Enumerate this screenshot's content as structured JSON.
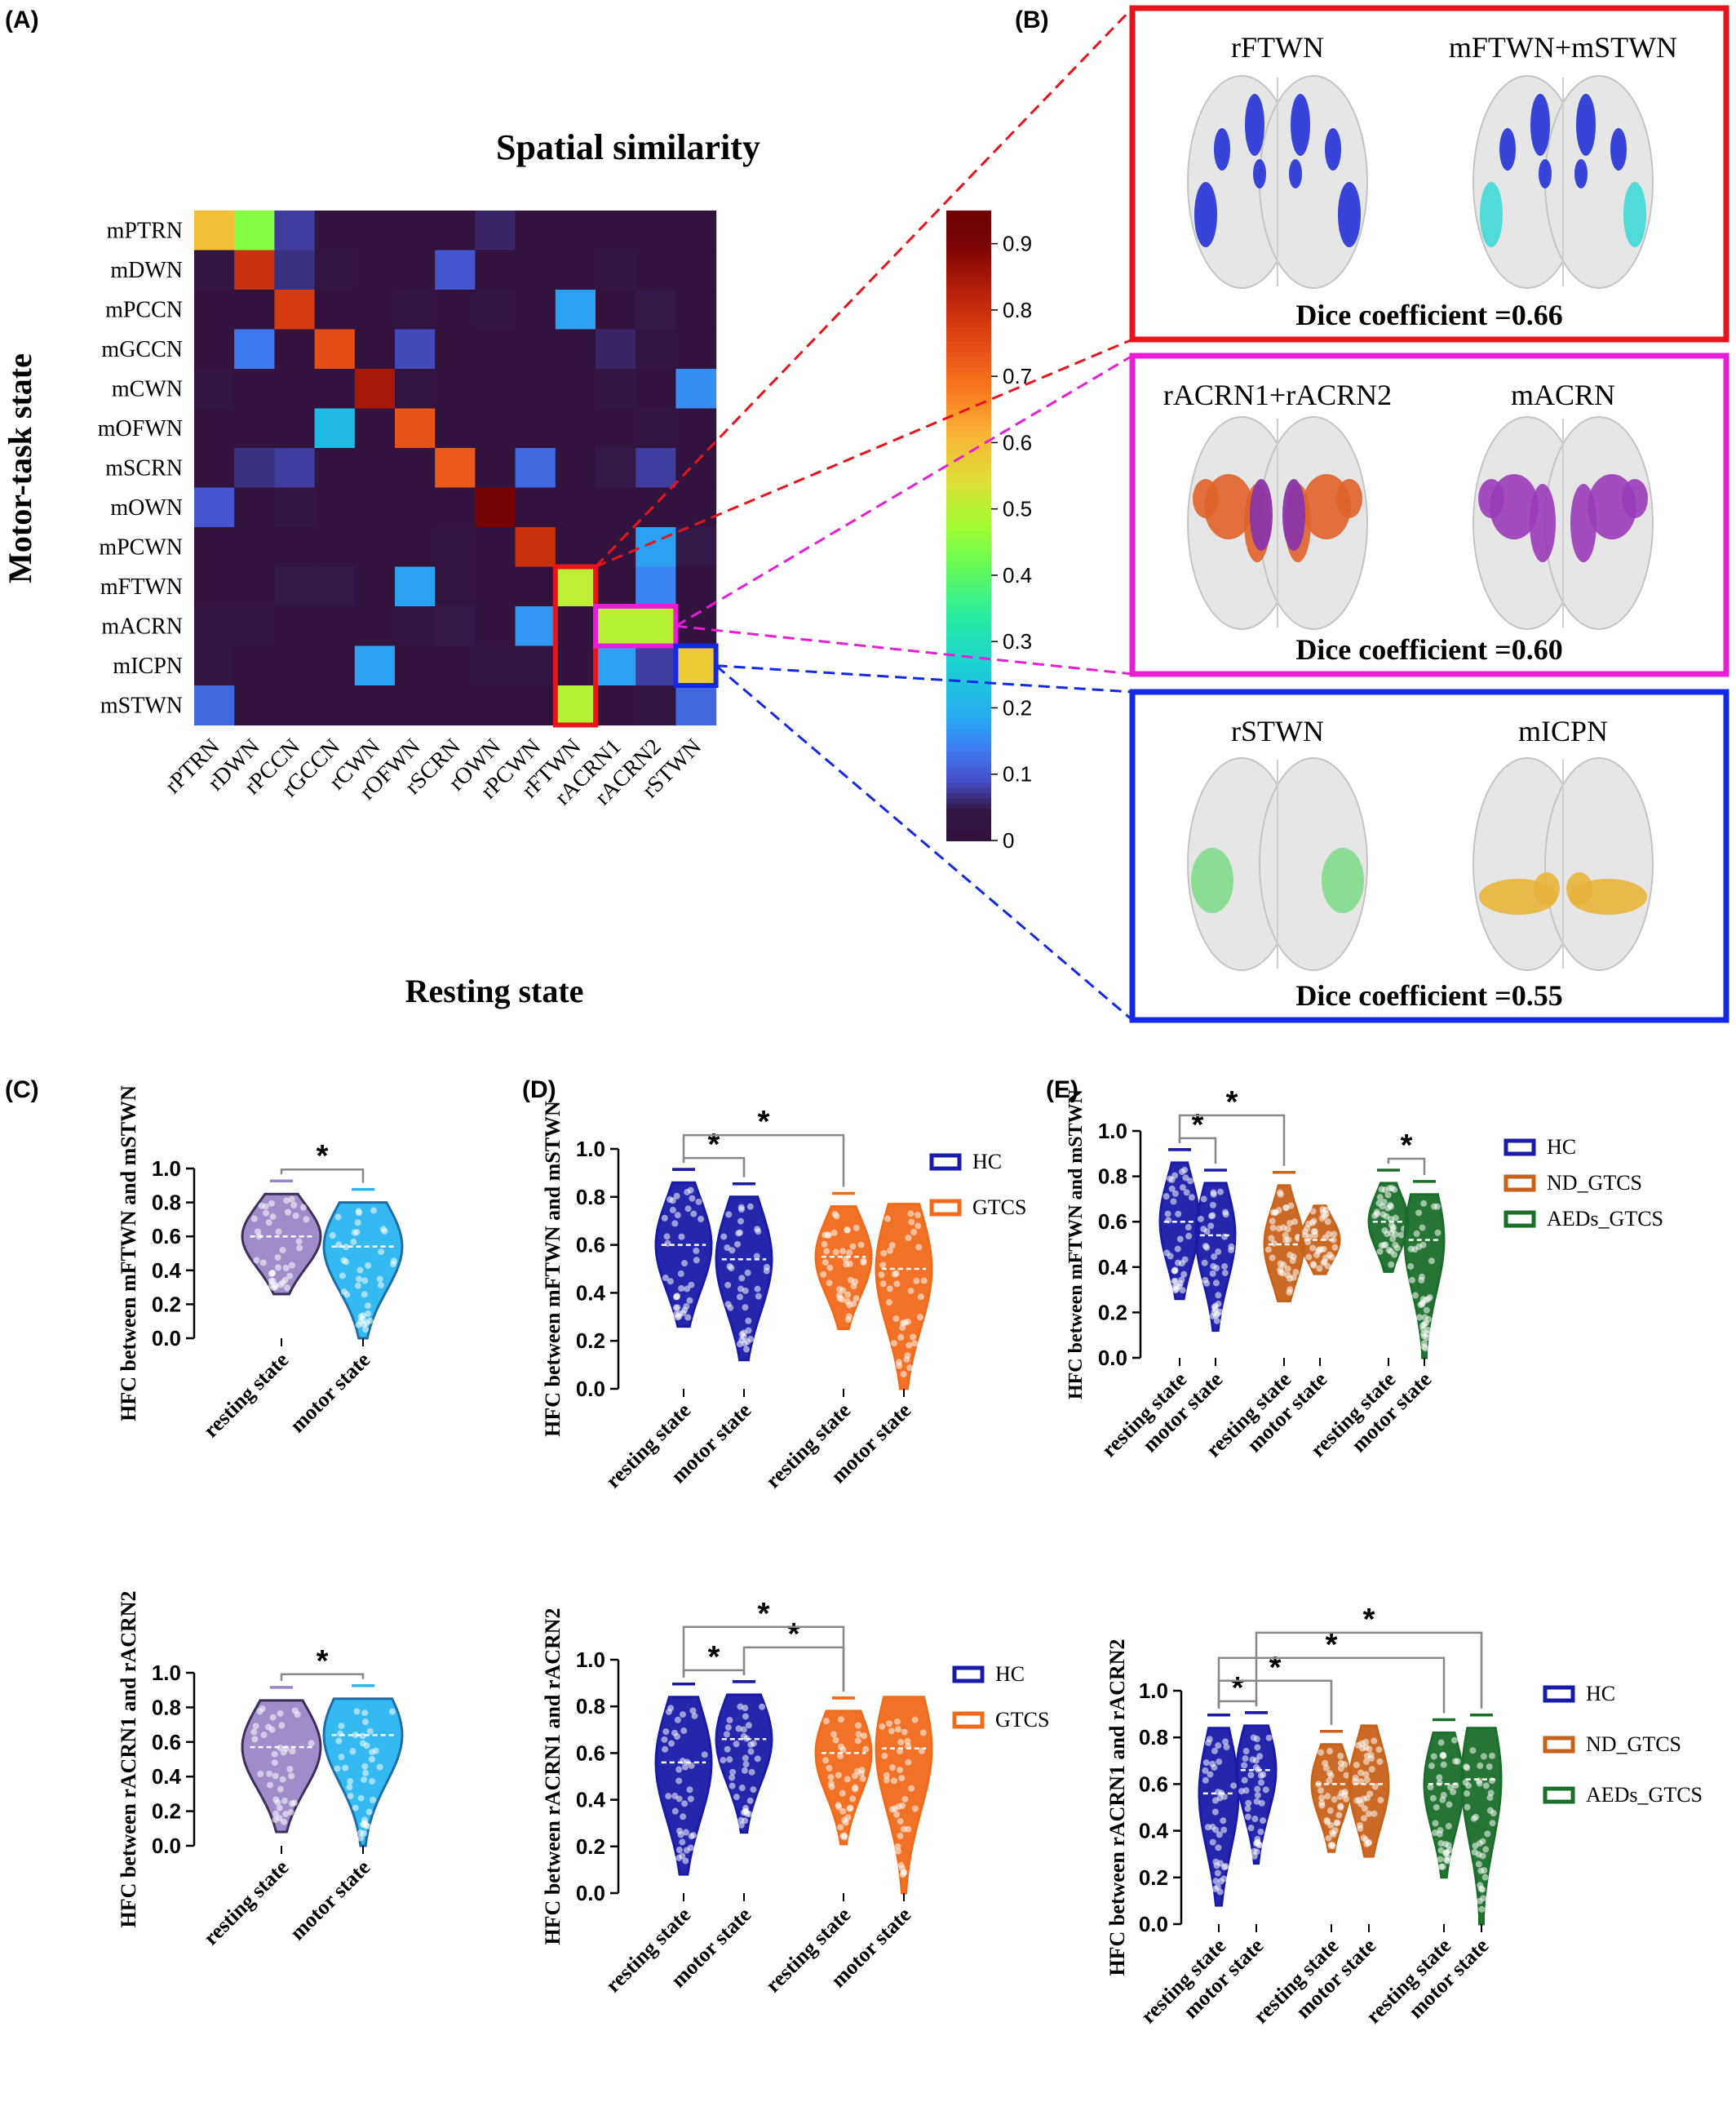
{
  "panels": {
    "A": {
      "label": "(A)"
    },
    "B": {
      "label": "(B)"
    },
    "C": {
      "label": "(C)"
    },
    "D": {
      "label": "(D)"
    },
    "E": {
      "label": "(E)"
    }
  },
  "chart_data": [
    {
      "id": "A",
      "type": "heatmap",
      "title": "Spatial similarity",
      "xlabel": "Resting state",
      "ylabel": "Motor-task state",
      "rows": [
        "mPTRN",
        "mDWN",
        "mPCCN",
        "mGCCN",
        "mCWN",
        "mOFWN",
        "mSCRN",
        "mOWN",
        "mPCWN",
        "mFTWN",
        "mACRN",
        "mICPN",
        "mSTWN"
      ],
      "cols": [
        "rPTRN",
        "rDWN",
        "rPCCN",
        "rGCCN",
        "rCWN",
        "rOFWN",
        "rSCRN",
        "rOWN",
        "rPCWN",
        "rFTWN",
        "rACRN1",
        "rACRN2",
        "rSTWN"
      ],
      "values": [
        [
          0.6,
          0.45,
          0.08,
          0.02,
          0.02,
          0.02,
          0.02,
          0.06,
          0.02,
          0.02,
          0.02,
          0.02,
          0.02
        ],
        [
          0.04,
          0.8,
          0.07,
          0.03,
          0.02,
          0.02,
          0.1,
          0.02,
          0.02,
          0.02,
          0.03,
          0.02,
          0.02
        ],
        [
          0.02,
          0.02,
          0.78,
          0.02,
          0.02,
          0.03,
          0.02,
          0.03,
          0.02,
          0.18,
          0.02,
          0.05,
          0.02
        ],
        [
          0.02,
          0.14,
          0.02,
          0.75,
          0.02,
          0.09,
          0.02,
          0.02,
          0.02,
          0.02,
          0.06,
          0.03,
          0.02
        ],
        [
          0.03,
          0.02,
          0.02,
          0.02,
          0.85,
          0.03,
          0.02,
          0.02,
          0.02,
          0.02,
          0.03,
          0.02,
          0.16
        ],
        [
          0.02,
          0.02,
          0.02,
          0.22,
          0.02,
          0.74,
          0.02,
          0.02,
          0.02,
          0.02,
          0.02,
          0.03,
          0.02
        ],
        [
          0.02,
          0.07,
          0.08,
          0.02,
          0.02,
          0.02,
          0.73,
          0.02,
          0.12,
          0.02,
          0.05,
          0.08,
          0.02
        ],
        [
          0.1,
          0.02,
          0.04,
          0.02,
          0.02,
          0.02,
          0.02,
          0.92,
          0.02,
          0.02,
          0.02,
          0.02,
          0.02
        ],
        [
          0.02,
          0.02,
          0.02,
          0.02,
          0.02,
          0.02,
          0.03,
          0.02,
          0.8,
          0.02,
          0.02,
          0.18,
          0.05
        ],
        [
          0.02,
          0.02,
          0.05,
          0.05,
          0.02,
          0.18,
          0.03,
          0.02,
          0.02,
          0.51,
          0.02,
          0.15,
          0.02
        ],
        [
          0.04,
          0.04,
          0.02,
          0.02,
          0.02,
          0.03,
          0.05,
          0.02,
          0.17,
          0.02,
          0.5,
          0.5,
          0.02
        ],
        [
          0.03,
          0.02,
          0.02,
          0.02,
          0.18,
          0.02,
          0.02,
          0.03,
          0.04,
          0.02,
          0.18,
          0.08,
          0.58
        ],
        [
          0.12,
          0.02,
          0.02,
          0.02,
          0.02,
          0.02,
          0.02,
          0.02,
          0.02,
          0.5,
          0.02,
          0.03,
          0.12
        ]
      ],
      "colorbar": {
        "ticks": [
          0,
          0.1,
          0.2,
          0.3,
          0.4,
          0.5,
          0.6,
          0.7,
          0.8,
          0.9
        ]
      },
      "highlights": [
        {
          "rows": [
            9,
            12
          ],
          "cols": [
            9,
            9
          ],
          "color": "#e8141b"
        },
        {
          "rows": [
            10,
            10
          ],
          "cols": [
            10,
            11
          ],
          "color": "#e81ed4"
        },
        {
          "rows": [
            11,
            11
          ],
          "cols": [
            12,
            12
          ],
          "color": "#1428e8"
        }
      ]
    },
    {
      "id": "B",
      "type": "table",
      "boxes": [
        {
          "color": "#e8141b",
          "left_label": "rFTWN",
          "right_label": "mFTWN+mSTWN",
          "dice": "Dice coefficient =0.66",
          "left_color": "#2233d6",
          "right_color": "#2233d6",
          "right_accent": "#3fd8d8"
        },
        {
          "color": "#e81ed4",
          "left_label": "rACRN1+rACRN2",
          "right_label": "mACRN",
          "dice": "Dice coefficient =0.60",
          "left_color": "#e0622a",
          "right_color": "#9a3bb8",
          "right_accent": "#9a3bb8"
        },
        {
          "color": "#1428e8",
          "left_label": "rSTWN",
          "right_label": "mICPN",
          "dice": "Dice coefficient =0.55",
          "left_color": "#7fdc8a",
          "right_color": "#e8b43a",
          "right_accent": "#e8b43a"
        }
      ]
    },
    {
      "id": "C-top",
      "type": "scatter",
      "ylabel": "HFC between mFTWN and mSTWN",
      "categories": [
        "resting state",
        "motor state"
      ],
      "ylim": [
        0,
        1.0
      ],
      "yticks": [
        "0.0",
        "0.2",
        "0.4",
        "0.6",
        "0.8",
        "1.0"
      ],
      "series": [
        {
          "color": "#9b86c8",
          "dark": "#3c2f5a",
          "min": 0.26,
          "max": 0.85,
          "median": 0.6
        },
        {
          "color": "#29b5f0",
          "dark": "#1d6ea8",
          "min": 0.0,
          "max": 0.8,
          "median": 0.54
        }
      ],
      "significance": [
        {
          "a": 0,
          "b": 1,
          "label": "*"
        }
      ]
    },
    {
      "id": "C-bottom",
      "type": "scatter",
      "ylabel": "HFC between rACRN1 and rACRN2",
      "categories": [
        "resting state",
        "motor state"
      ],
      "ylim": [
        0,
        1.0
      ],
      "yticks": [
        "0.0",
        "0.2",
        "0.4",
        "0.6",
        "0.8",
        "1.0"
      ],
      "series": [
        {
          "color": "#9b86c8",
          "dark": "#3c2f5a",
          "min": 0.08,
          "max": 0.84,
          "median": 0.57
        },
        {
          "color": "#29b5f0",
          "dark": "#1d6ea8",
          "min": 0.0,
          "max": 0.85,
          "median": 0.64
        }
      ],
      "significance": [
        {
          "a": 0,
          "b": 1,
          "label": "*"
        }
      ]
    },
    {
      "id": "D-top",
      "type": "scatter",
      "ylabel": "HFC between mFTWN and mSTWN",
      "categories": [
        "resting state",
        "motor state",
        "resting state",
        "motor state"
      ],
      "ylim": [
        0,
        1.0
      ],
      "yticks": [
        "0.0",
        "0.2",
        "0.4",
        "0.6",
        "0.8",
        "1.0"
      ],
      "legend": [
        {
          "name": "HC",
          "color": "#1a1aa8"
        },
        {
          "name": "GTCS",
          "color": "#f06a1a"
        }
      ],
      "series": [
        {
          "color": "#1a1aa8",
          "min": 0.26,
          "max": 0.86,
          "median": 0.6
        },
        {
          "color": "#1a1aa8",
          "min": 0.12,
          "max": 0.8,
          "median": 0.54
        },
        {
          "color": "#f06a1a",
          "min": 0.25,
          "max": 0.76,
          "median": 0.55
        },
        {
          "color": "#f06a1a",
          "min": 0.0,
          "max": 0.77,
          "median": 0.5
        }
      ],
      "significance": [
        {
          "a": 0,
          "b": 1,
          "label": "*",
          "level": 0
        },
        {
          "a": 0,
          "b": 2,
          "label": "*",
          "level": 1
        }
      ]
    },
    {
      "id": "D-bottom",
      "type": "scatter",
      "ylabel": "HFC between rACRN1 and rACRN2",
      "categories": [
        "resting state",
        "motor state",
        "resting state",
        "motor state"
      ],
      "ylim": [
        0,
        1.0
      ],
      "yticks": [
        "0.0",
        "0.2",
        "0.4",
        "0.6",
        "0.8",
        "1.0"
      ],
      "legend": [
        {
          "name": "HC",
          "color": "#1a1aa8"
        },
        {
          "name": "GTCS",
          "color": "#f06a1a"
        }
      ],
      "series": [
        {
          "color": "#1a1aa8",
          "min": 0.08,
          "max": 0.84,
          "median": 0.56
        },
        {
          "color": "#1a1aa8",
          "min": 0.26,
          "max": 0.85,
          "median": 0.66
        },
        {
          "color": "#f06a1a",
          "min": 0.21,
          "max": 0.78,
          "median": 0.6
        },
        {
          "color": "#f06a1a",
          "min": 0.0,
          "max": 0.84,
          "median": 0.62
        }
      ],
      "significance": [
        {
          "a": 0,
          "b": 1,
          "label": "*",
          "level": 0
        },
        {
          "a": 1,
          "b": 2,
          "label": "*",
          "level": 1
        },
        {
          "a": 0,
          "b": 2,
          "label": "*",
          "level": 2
        }
      ]
    },
    {
      "id": "E-top",
      "type": "scatter",
      "ylabel": "HFC between mFTWN and mSTWN",
      "categories": [
        "resting state",
        "motor state",
        "resting state",
        "motor state",
        "resting state",
        "motor state"
      ],
      "ylim": [
        0,
        1.0
      ],
      "yticks": [
        "0.0",
        "0.2",
        "0.4",
        "0.6",
        "0.8",
        "1.0"
      ],
      "legend": [
        {
          "name": "HC",
          "color": "#1a1aa8"
        },
        {
          "name": "ND_GTCS",
          "color": "#c8621a"
        },
        {
          "name": "AEDs_GTCS",
          "color": "#1a6e2a"
        }
      ],
      "series": [
        {
          "color": "#1a1aa8",
          "min": 0.26,
          "max": 0.86,
          "median": 0.6
        },
        {
          "color": "#1a1aa8",
          "min": 0.12,
          "max": 0.77,
          "median": 0.54
        },
        {
          "color": "#c8621a",
          "min": 0.25,
          "max": 0.76,
          "median": 0.5
        },
        {
          "color": "#c8621a",
          "min": 0.37,
          "max": 0.67,
          "median": 0.52
        },
        {
          "color": "#1a6e2a",
          "min": 0.38,
          "max": 0.77,
          "median": 0.6
        },
        {
          "color": "#1a6e2a",
          "min": 0.0,
          "max": 0.72,
          "median": 0.52
        }
      ],
      "significance": [
        {
          "a": 0,
          "b": 1,
          "label": "*",
          "level": 0
        },
        {
          "a": 0,
          "b": 2,
          "label": "*",
          "level": 1
        },
        {
          "a": 4,
          "b": 5,
          "label": "*",
          "level": 0
        }
      ]
    },
    {
      "id": "E-bottom",
      "type": "scatter",
      "ylabel": "HFC between rACRN1 and rACRN2",
      "categories": [
        "resting state",
        "motor state",
        "resting state",
        "motor state",
        "resting state",
        "motor state"
      ],
      "ylim": [
        0,
        1.0
      ],
      "yticks": [
        "0.0",
        "0.2",
        "0.4",
        "0.6",
        "0.8",
        "1.0"
      ],
      "legend": [
        {
          "name": "HC",
          "color": "#1a1aa8"
        },
        {
          "name": "ND_GTCS",
          "color": "#c8621a"
        },
        {
          "name": "AEDs_GTCS",
          "color": "#1a6e2a"
        }
      ],
      "series": [
        {
          "color": "#1a1aa8",
          "min": 0.08,
          "max": 0.84,
          "median": 0.56
        },
        {
          "color": "#1a1aa8",
          "min": 0.26,
          "max": 0.85,
          "median": 0.66
        },
        {
          "color": "#c8621a",
          "min": 0.31,
          "max": 0.77,
          "median": 0.6
        },
        {
          "color": "#c8621a",
          "min": 0.29,
          "max": 0.85,
          "median": 0.6
        },
        {
          "color": "#1a6e2a",
          "min": 0.2,
          "max": 0.82,
          "median": 0.6
        },
        {
          "color": "#1a6e2a",
          "min": 0.0,
          "max": 0.84,
          "median": 0.62
        }
      ],
      "significance": [
        {
          "a": 0,
          "b": 1,
          "label": "*",
          "level": 0
        },
        {
          "a": 0,
          "b": 2,
          "label": "*",
          "level": 1
        },
        {
          "a": 0,
          "b": 4,
          "label": "*",
          "level": 2
        },
        {
          "a": 1,
          "b": 5,
          "label": "*",
          "level": 3
        }
      ]
    }
  ]
}
